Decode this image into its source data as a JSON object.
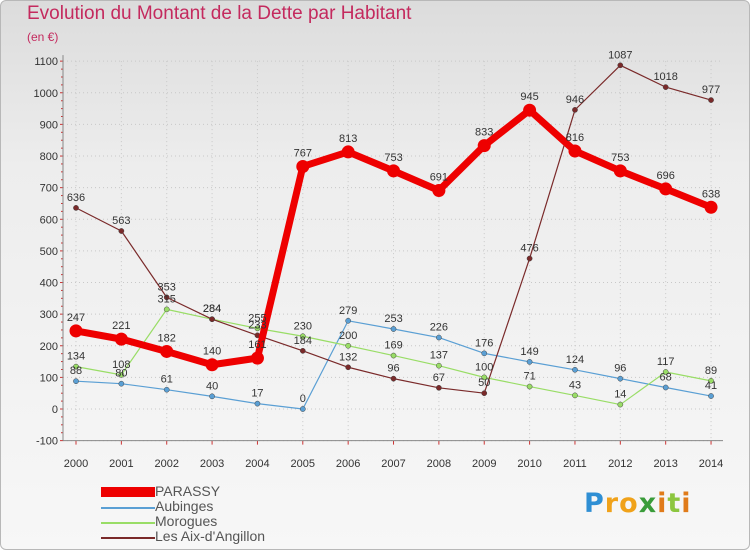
{
  "title": "Evolution du Montant de la Dette par Habitant",
  "subtitle": "(en €)",
  "logo": "Proxiti",
  "chart_data": {
    "type": "line",
    "title": "Evolution du Montant de la Dette par Habitant",
    "ylabel": "(en €)",
    "ylim": [
      -100,
      1100
    ],
    "yticks": [
      -100,
      0,
      100,
      200,
      300,
      400,
      500,
      600,
      700,
      800,
      900,
      1000,
      1100
    ],
    "x": [
      "2000",
      "2001",
      "2002",
      "2003",
      "2004",
      "2005",
      "2006",
      "2007",
      "2008",
      "2009",
      "2010",
      "2011",
      "2012",
      "2013",
      "2014"
    ],
    "grid": true,
    "legend_position": "bottom-left",
    "series": [
      {
        "name": "PARASSY",
        "color": "#ee0000",
        "values": [
          247,
          221,
          182,
          140,
          161,
          767,
          813,
          753,
          691,
          833,
          945,
          816,
          753,
          696,
          638
        ]
      },
      {
        "name": "Aubinges",
        "color": "#5a9fd4",
        "values": [
          88,
          80,
          61,
          40,
          17,
          0,
          279,
          253,
          226,
          176,
          149,
          124,
          96,
          68,
          41
        ]
      },
      {
        "name": "Morogues",
        "color": "#99dd66",
        "values": [
          134,
          108,
          315,
          284,
          255,
          230,
          200,
          169,
          137,
          100,
          71,
          43,
          14,
          117,
          89
        ]
      },
      {
        "name": "Les Aix-d'Angillon",
        "color": "#7a2a2a",
        "values": [
          636,
          563,
          353,
          284,
          233,
          184,
          132,
          96,
          67,
          50,
          476,
          946,
          1087,
          1018,
          977
        ]
      }
    ]
  }
}
